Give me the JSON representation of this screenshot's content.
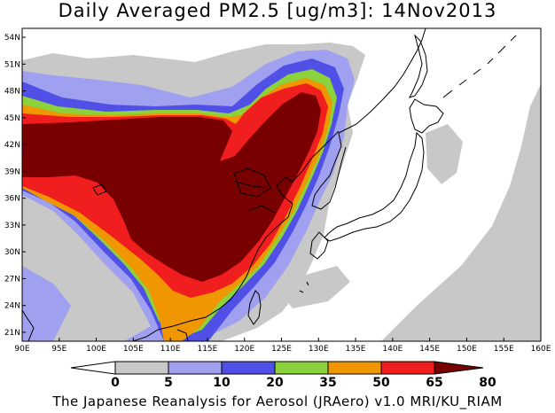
{
  "title": "Daily Averaged PM2.5 [ug/m3]: 14Nov2013",
  "footer": "The Japanese Reanalysis for Aerosol (JRAero) v1.0 MRI/KU_RIAM",
  "map": {
    "lon_range": [
      90,
      160
    ],
    "lat_range": [
      20,
      55
    ],
    "lon_ticks": [
      "90E",
      "95E",
      "100E",
      "105E",
      "110E",
      "115E",
      "120E",
      "125E",
      "130E",
      "135E",
      "140E",
      "145E",
      "150E",
      "155E",
      "160E"
    ],
    "lat_ticks": [
      "21N",
      "24N",
      "27N",
      "30N",
      "33N",
      "36N",
      "39N",
      "42N",
      "45N",
      "48N",
      "51N",
      "54N"
    ]
  },
  "colorbar": {
    "levels": [
      "0",
      "5",
      "10",
      "20",
      "35",
      "50",
      "65",
      "80"
    ],
    "colors": [
      "#ffffff",
      "#c8c8c8",
      "#a0a0f0",
      "#5050e6",
      "#8cd23c",
      "#f09600",
      "#f01e1e",
      "#780000"
    ]
  },
  "palette": {
    "gray": "#c8c8c8",
    "light_blue": "#a0a0f0",
    "blue": "#5050e6",
    "green": "#8cd23c",
    "orange": "#f09600",
    "red": "#f01e1e",
    "dark_red": "#780000"
  }
}
